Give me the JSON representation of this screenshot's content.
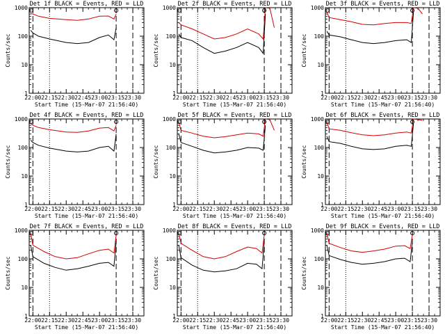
{
  "chart_data": [
    {
      "type": "line",
      "title": "Det 1f BLACK = Events, RED = LLD",
      "xlabel": "Start Time (15-Mar-07 21:56:40)",
      "ylabel": "Counts/sec",
      "ylog": true,
      "ylim": [
        1,
        1000
      ],
      "xticks": [
        "22:00",
        "22:15",
        "22:30",
        "22:45",
        "23:00",
        "23:15",
        "23:30"
      ],
      "yticks": [
        "1",
        "10",
        "100",
        "1000"
      ],
      "markers": {
        "dashed": [
          "22:00",
          "23:15",
          "23:30"
        ],
        "dotted": [
          "22:15"
        ]
      },
      "peak_label_lines": [
        "23:15"
      ],
      "series": [
        {
          "color": "#d00000",
          "x": [
            "21:58",
            "22:00",
            "22:05",
            "22:15",
            "22:30",
            "22:40",
            "22:50",
            "23:00",
            "23:08",
            "23:13",
            "23:15"
          ],
          "values": [
            620,
            600,
            500,
            420,
            380,
            360,
            400,
            500,
            510,
            400,
            600
          ]
        },
        {
          "color": "#000000",
          "x": [
            "21:58",
            "22:00",
            "22:05",
            "22:15",
            "22:30",
            "22:40",
            "22:50",
            "23:00",
            "23:08",
            "23:13",
            "23:15"
          ],
          "values": [
            160,
            130,
            100,
            80,
            60,
            55,
            60,
            90,
            110,
            75,
            200
          ]
        }
      ]
    },
    {
      "type": "line",
      "title": "Det 2f BLACK = Events, RED = LLD",
      "xlabel": "Start Time (15-Mar-07 21:56:40)",
      "ylabel": "Counts/sec",
      "ylog": true,
      "ylim": [
        1,
        1000
      ],
      "xticks": [
        "22:00",
        "22:15",
        "22:30",
        "22:45",
        "23:00",
        "23:15",
        "23:30"
      ],
      "yticks": [
        "1",
        "10",
        "100",
        "1000"
      ],
      "markers": {
        "dashed": [
          "22:00",
          "23:15",
          "23:30"
        ],
        "dotted": [
          "22:15"
        ]
      },
      "peak_label_lines": [
        "23:15"
      ],
      "series": [
        {
          "color": "#d00000",
          "x": [
            "21:58",
            "22:00",
            "22:10",
            "22:20",
            "22:30",
            "22:40",
            "22:50",
            "23:00",
            "23:10",
            "23:14",
            "23:16",
            "23:20",
            "23:24"
          ],
          "values": [
            300,
            250,
            180,
            120,
            80,
            90,
            120,
            180,
            120,
            80,
            1000,
            950,
            200
          ]
        },
        {
          "color": "#000000",
          "x": [
            "21:58",
            "22:00",
            "22:10",
            "22:20",
            "22:30",
            "22:40",
            "22:50",
            "23:00",
            "23:10",
            "23:14",
            "23:16"
          ],
          "values": [
            120,
            90,
            70,
            40,
            25,
            30,
            40,
            60,
            40,
            25,
            600
          ]
        }
      ]
    },
    {
      "type": "line",
      "title": "Det 3f BLACK = Events, RED = LLD",
      "xlabel": "Start Time (15-Mar-07 21:56:40)",
      "ylabel": "Counts/sec",
      "ylog": true,
      "ylim": [
        1,
        1000
      ],
      "xticks": [
        "22:00",
        "22:15",
        "22:30",
        "22:45",
        "23:00",
        "23:15",
        "23:30"
      ],
      "yticks": [
        "1",
        "10",
        "100",
        "1000"
      ],
      "markers": {
        "dashed": [
          "22:00",
          "23:15",
          "23:30"
        ],
        "dotted": [
          "22:15"
        ]
      },
      "peak_label_lines": [
        "23:15"
      ],
      "series": [
        {
          "color": "#d00000",
          "x": [
            "21:58",
            "22:00",
            "22:10",
            "22:20",
            "22:30",
            "22:40",
            "22:50",
            "23:00",
            "23:10",
            "23:14",
            "23:16",
            "23:20",
            "23:24"
          ],
          "values": [
            700,
            450,
            380,
            320,
            260,
            250,
            280,
            300,
            300,
            280,
            1000,
            950,
            600
          ]
        },
        {
          "color": "#000000",
          "x": [
            "21:58",
            "22:00",
            "22:10",
            "22:20",
            "22:30",
            "22:40",
            "22:50",
            "23:00",
            "23:10",
            "23:14",
            "23:16"
          ],
          "values": [
            150,
            110,
            95,
            75,
            60,
            55,
            60,
            70,
            75,
            60,
            700
          ]
        }
      ]
    },
    {
      "type": "line",
      "title": "Det 4f BLACK = Events, RED = LLD",
      "xlabel": "Start Time (15-Mar-07 21:56:40)",
      "ylabel": "Counts/sec",
      "ylog": true,
      "ylim": [
        1,
        1000
      ],
      "xticks": [
        "22:00",
        "22:15",
        "22:30",
        "22:45",
        "23:00",
        "23:15",
        "23:30"
      ],
      "yticks": [
        "1",
        "10",
        "100",
        "1000"
      ],
      "markers": {
        "dashed": [
          "22:00",
          "23:15",
          "23:30"
        ],
        "dotted": [
          "22:15"
        ]
      },
      "peak_label_lines": [
        "23:15"
      ],
      "series": [
        {
          "color": "#d00000",
          "x": [
            "21:58",
            "22:00",
            "22:05",
            "22:15",
            "22:30",
            "22:40",
            "22:50",
            "23:00",
            "23:08",
            "23:13",
            "23:15"
          ],
          "values": [
            700,
            600,
            500,
            420,
            350,
            340,
            380,
            480,
            500,
            380,
            600
          ]
        },
        {
          "color": "#000000",
          "x": [
            "21:58",
            "22:00",
            "22:05",
            "22:15",
            "22:30",
            "22:40",
            "22:50",
            "23:00",
            "23:08",
            "23:13",
            "23:15"
          ],
          "values": [
            180,
            150,
            120,
            95,
            75,
            70,
            75,
            100,
            110,
            75,
            300
          ]
        }
      ]
    },
    {
      "type": "line",
      "title": "Det 5f BLACK = Events, RED = LLD",
      "xlabel": "Start Time (15-Mar-07 21:56:40)",
      "ylabel": "Counts/sec",
      "ylog": true,
      "ylim": [
        1,
        1000
      ],
      "xticks": [
        "22:00",
        "22:15",
        "22:30",
        "22:45",
        "23:00",
        "23:15",
        "23:30"
      ],
      "yticks": [
        "1",
        "10",
        "100",
        "1000"
      ],
      "markers": {
        "dashed": [
          "22:00",
          "23:15",
          "23:30"
        ],
        "dotted": [
          "22:15"
        ]
      },
      "peak_label_lines": [
        "23:15"
      ],
      "series": [
        {
          "color": "#d00000",
          "x": [
            "21:58",
            "22:00",
            "22:10",
            "22:20",
            "22:30",
            "22:40",
            "22:50",
            "23:00",
            "23:10",
            "23:14",
            "23:16",
            "23:20",
            "23:24"
          ],
          "values": [
            800,
            400,
            320,
            250,
            220,
            240,
            280,
            320,
            300,
            250,
            1000,
            950,
            400
          ]
        },
        {
          "color": "#000000",
          "x": [
            "21:58",
            "22:00",
            "22:10",
            "22:20",
            "22:30",
            "22:40",
            "22:50",
            "23:00",
            "23:10",
            "23:14",
            "23:16"
          ],
          "values": [
            300,
            150,
            110,
            80,
            65,
            70,
            80,
            100,
            95,
            80,
            600
          ]
        }
      ]
    },
    {
      "type": "line",
      "title": "Det 6f BLACK = Events, RED = LLD",
      "xlabel": "Start Time (15-Mar-07 21:56:40)",
      "ylabel": "Counts/sec",
      "ylog": true,
      "ylim": [
        1,
        1000
      ],
      "xticks": [
        "22:00",
        "22:15",
        "22:30",
        "22:45",
        "23:00",
        "23:15",
        "23:30"
      ],
      "yticks": [
        "1",
        "10",
        "100",
        "1000"
      ],
      "markers": {
        "dashed": [
          "22:00",
          "23:15",
          "23:30"
        ],
        "dotted": [
          "22:15"
        ]
      },
      "peak_label_lines": [
        "23:15"
      ],
      "series": [
        {
          "color": "#d00000",
          "x": [
            "21:58",
            "22:00",
            "22:10",
            "22:20",
            "22:30",
            "22:40",
            "22:50",
            "23:00",
            "23:10",
            "23:14",
            "23:16",
            "23:20",
            "23:24"
          ],
          "values": [
            800,
            450,
            400,
            330,
            280,
            260,
            280,
            320,
            350,
            320,
            1000,
            950,
            900
          ]
        },
        {
          "color": "#000000",
          "x": [
            "21:58",
            "22:00",
            "22:10",
            "22:20",
            "22:30",
            "22:40",
            "22:50",
            "23:00",
            "23:10",
            "23:14",
            "23:16"
          ],
          "values": [
            250,
            160,
            140,
            110,
            90,
            85,
            90,
            110,
            120,
            110,
            700
          ]
        }
      ]
    },
    {
      "type": "line",
      "title": "Det 7f BLACK = Events, RED = LLD",
      "xlabel": "Start Time (15-Mar-07 21:56:40)",
      "ylabel": "Counts/sec",
      "ylog": true,
      "ylim": [
        1,
        1000
      ],
      "xticks": [
        "22:00",
        "22:15",
        "22:30",
        "22:45",
        "23:00",
        "23:15",
        "23:30"
      ],
      "yticks": [
        "1",
        "10",
        "100",
        "1000"
      ],
      "markers": {
        "dashed": [
          "22:00",
          "23:15",
          "23:30"
        ],
        "dotted": [
          "22:15"
        ]
      },
      "peak_label_lines": [
        "23:15"
      ],
      "series": [
        {
          "color": "#d00000",
          "x": [
            "21:58",
            "22:00",
            "22:10",
            "22:20",
            "22:30",
            "22:40",
            "22:50",
            "23:00",
            "23:08",
            "23:13",
            "23:15"
          ],
          "values": [
            800,
            300,
            180,
            120,
            100,
            110,
            150,
            200,
            220,
            160,
            700
          ]
        },
        {
          "color": "#000000",
          "x": [
            "21:58",
            "22:00",
            "22:10",
            "22:20",
            "22:30",
            "22:40",
            "22:50",
            "23:00",
            "23:08",
            "23:13",
            "23:15"
          ],
          "values": [
            300,
            120,
            70,
            50,
            40,
            45,
            55,
            70,
            75,
            55,
            400
          ]
        }
      ]
    },
    {
      "type": "line",
      "title": "Det 8f BLACK = Events, RED = LLD",
      "xlabel": "Start Time (15-Mar-07 21:56:40)",
      "ylabel": "Counts/sec",
      "ylog": true,
      "ylim": [
        1,
        1000
      ],
      "xticks": [
        "22:00",
        "22:15",
        "22:30",
        "22:45",
        "23:00",
        "23:15",
        "23:30"
      ],
      "yticks": [
        "1",
        "10",
        "100",
        "1000"
      ],
      "markers": {
        "dashed": [
          "22:00",
          "23:15",
          "23:30"
        ],
        "dotted": [
          "22:15"
        ]
      },
      "peak_label_lines": [
        "23:15"
      ],
      "series": [
        {
          "color": "#d00000",
          "x": [
            "21:58",
            "22:00",
            "22:10",
            "22:20",
            "22:30",
            "22:40",
            "22:50",
            "23:00",
            "23:08",
            "23:13",
            "23:15"
          ],
          "values": [
            800,
            350,
            200,
            120,
            100,
            120,
            180,
            260,
            230,
            160,
            700
          ]
        },
        {
          "color": "#000000",
          "x": [
            "21:58",
            "22:00",
            "22:10",
            "22:20",
            "22:30",
            "22:40",
            "22:50",
            "23:00",
            "23:08",
            "23:13",
            "23:15"
          ],
          "values": [
            300,
            110,
            60,
            40,
            35,
            38,
            45,
            70,
            65,
            45,
            400
          ]
        }
      ]
    },
    {
      "type": "line",
      "title": "Det 9f BLACK = Events, RED = LLD",
      "xlabel": "Start Time (15-Mar-07 21:56:40)",
      "ylabel": "Counts/sec",
      "ylog": true,
      "ylim": [
        1,
        1000
      ],
      "xticks": [
        "22:00",
        "22:15",
        "22:30",
        "22:45",
        "23:00",
        "23:15",
        "23:30"
      ],
      "yticks": [
        "1",
        "10",
        "100",
        "1000"
      ],
      "markers": {
        "dashed": [
          "22:00",
          "23:15",
          "23:30"
        ],
        "dotted": [
          "22:15"
        ]
      },
      "peak_label_lines": [
        "23:15"
      ],
      "series": [
        {
          "color": "#d00000",
          "x": [
            "21:58",
            "22:00",
            "22:10",
            "22:20",
            "22:30",
            "22:40",
            "22:50",
            "23:00",
            "23:08",
            "23:13",
            "23:15"
          ],
          "values": [
            800,
            350,
            250,
            190,
            170,
            190,
            220,
            280,
            290,
            230,
            700
          ]
        },
        {
          "color": "#000000",
          "x": [
            "21:58",
            "22:00",
            "22:10",
            "22:20",
            "22:30",
            "22:40",
            "22:50",
            "23:00",
            "23:08",
            "23:13",
            "23:15"
          ],
          "values": [
            300,
            130,
            95,
            75,
            65,
            70,
            80,
            100,
            105,
            80,
            400
          ]
        }
      ]
    }
  ]
}
